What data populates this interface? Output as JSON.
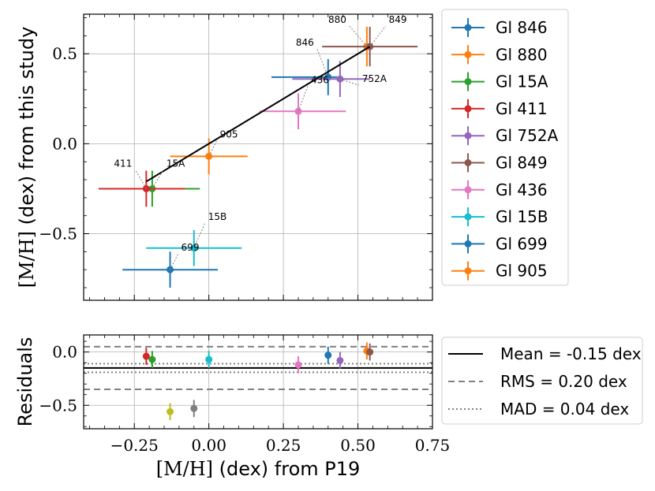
{
  "chart_data": [
    {
      "type": "scatter",
      "panel": "main",
      "xlim": [
        -0.42,
        0.75
      ],
      "ylim": [
        -0.87,
        0.72
      ],
      "xticks": [
        -0.25,
        0.0,
        0.25,
        0.5,
        0.75
      ],
      "yticks": [
        -0.5,
        0.0,
        0.5
      ],
      "ytick_labels": [
        "−0.5",
        "0.0",
        "0.5"
      ],
      "ylabel_math": "[M/H]",
      "ylabel_text": " (dex) from this study",
      "grid": true,
      "fit_line": {
        "x": [
          -0.21,
          0.54
        ],
        "y": [
          -0.21,
          0.54
        ]
      },
      "series": [
        {
          "name": "Gl 846",
          "color": "#1f77b4",
          "x": 0.4,
          "y": 0.37,
          "xerr": [
            0.19,
            0.03
          ],
          "yerr": 0.1,
          "annotation": "846"
        },
        {
          "name": "Gl 880",
          "color": "#ff7f0e",
          "x": 0.53,
          "y": 0.54,
          "xerr": 0.0,
          "yerr": 0.11,
          "annotation": "880"
        },
        {
          "name": "Gl 15A",
          "color": "#2ca02c",
          "x": -0.19,
          "y": -0.25,
          "xerr": [
            0.0,
            0.16
          ],
          "yerr": 0.1,
          "annotation": "15A"
        },
        {
          "name": "Gl 411",
          "color": "#d62728",
          "x": -0.21,
          "y": -0.25,
          "xerr": [
            0.16,
            0.13
          ],
          "yerr": 0.1,
          "annotation": "411"
        },
        {
          "name": "Gl 752A",
          "color": "#9467bd",
          "x": 0.44,
          "y": 0.36,
          "xerr": [
            0.16,
            0.1
          ],
          "yerr": 0.1,
          "annotation": "752A"
        },
        {
          "name": "Gl 849",
          "color": "#8c564b",
          "x": 0.54,
          "y": 0.54,
          "xerr": [
            0.16,
            0.16
          ],
          "yerr": 0.11,
          "annotation": "849"
        },
        {
          "name": "Gl 436",
          "color": "#e377c2",
          "x": 0.3,
          "y": 0.18,
          "xerr": [
            0.13,
            0.16
          ],
          "yerr": 0.1,
          "annotation": "436"
        },
        {
          "name": "Gl 15B",
          "color": "#17becf",
          "x": -0.05,
          "y": -0.58,
          "xerr": [
            0.16,
            0.16
          ],
          "yerr": 0.1,
          "annotation": "15B"
        },
        {
          "name": "Gl 699",
          "color": "#1f77b4",
          "x": -0.13,
          "y": -0.7,
          "xerr": [
            0.16,
            0.16
          ],
          "yerr": 0.1,
          "annotation": "699"
        },
        {
          "name": "Gl 905",
          "color": "#ff7f0e",
          "x": 0.0,
          "y": -0.07,
          "xerr": [
            0.13,
            0.13
          ],
          "yerr": 0.1,
          "annotation": "905"
        }
      ]
    },
    {
      "type": "scatter",
      "panel": "residuals",
      "xlim": [
        -0.42,
        0.75
      ],
      "ylim": [
        -0.72,
        0.16
      ],
      "xticks": [
        -0.25,
        0.0,
        0.25,
        0.5,
        0.75
      ],
      "xtick_labels": [
        "−0.25",
        "0.00",
        "0.25",
        "0.50",
        "0.75"
      ],
      "yticks": [
        -0.5,
        0.0
      ],
      "ytick_labels": [
        "−0.5",
        "0.0"
      ],
      "xlabel_math": "[M/H]",
      "xlabel_text": " (dex) from P19",
      "ylabel": "Residuals",
      "grid": true,
      "points": [
        {
          "x": -0.21,
          "y": -0.04,
          "yerr": 0.08,
          "color": "#d62728"
        },
        {
          "x": -0.19,
          "y": -0.07,
          "yerr": 0.08,
          "color": "#2ca02c"
        },
        {
          "x": 0.0,
          "y": -0.07,
          "yerr": 0.08,
          "color": "#17becf"
        },
        {
          "x": 0.3,
          "y": -0.12,
          "yerr": 0.08,
          "color": "#e377c2"
        },
        {
          "x": 0.4,
          "y": -0.03,
          "yerr": 0.08,
          "color": "#1f77b4"
        },
        {
          "x": 0.44,
          "y": -0.08,
          "yerr": 0.08,
          "color": "#9467bd"
        },
        {
          "x": 0.53,
          "y": 0.01,
          "yerr": 0.08,
          "color": "#ff7f0e"
        },
        {
          "x": 0.54,
          "y": 0.0,
          "yerr": 0.08,
          "color": "#8c564b"
        },
        {
          "x": -0.13,
          "y": -0.56,
          "yerr": 0.08,
          "color": "#bcbd22"
        },
        {
          "x": -0.05,
          "y": -0.53,
          "yerr": 0.08,
          "color": "#7f7f7f"
        }
      ],
      "hlines": [
        {
          "name": "Mean = -0.15 dex",
          "y": -0.15,
          "style": "solid",
          "color": "#000000"
        },
        {
          "name": "RMS = 0.20 dex",
          "y": [
            0.05,
            -0.35
          ],
          "style": "dashed",
          "color": "#808080"
        },
        {
          "name": "MAD = 0.04 dex",
          "y": [
            -0.11,
            -0.19
          ],
          "style": "dotted",
          "color": "#808080"
        }
      ]
    }
  ]
}
